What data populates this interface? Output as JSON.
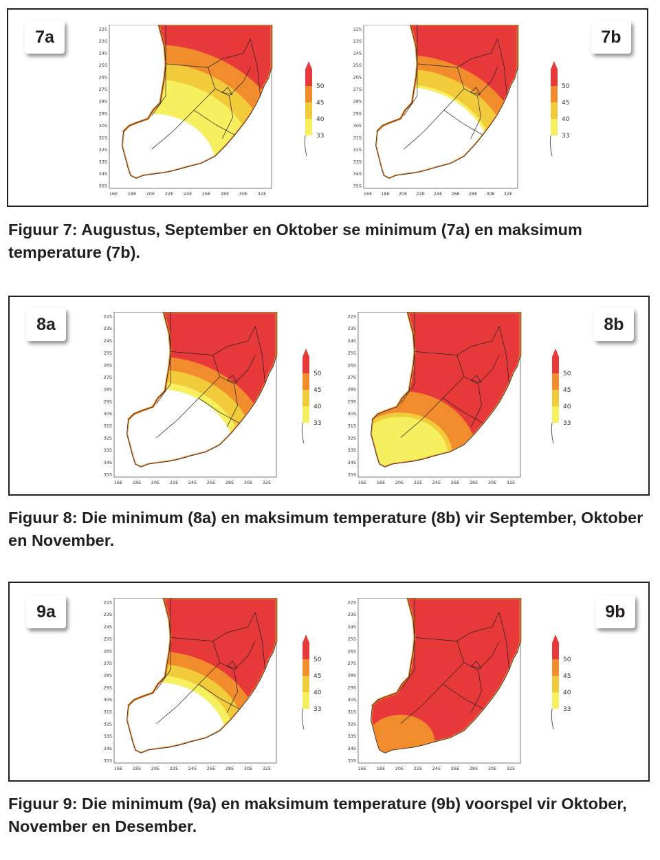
{
  "figures": [
    {
      "id": "7",
      "panels": [
        {
          "tag": "7a",
          "white_extent": 0.3,
          "inner_extent": 0.78,
          "outer_extent": 0.95
        },
        {
          "tag": "7b",
          "white_extent": 0.55,
          "inner_extent": 0.72,
          "outer_extent": 0.85
        }
      ],
      "caption": "Figuur 7: Augustus, September en Oktober se minimum (7a) en maksimum temperature (7b)."
    },
    {
      "id": "8",
      "panels": [
        {
          "tag": "8a",
          "white_extent": 0.42,
          "inner_extent": 0.6,
          "outer_extent": 0.72
        },
        {
          "tag": "8b",
          "white_extent": 0.0,
          "inner_extent": 0.2,
          "outer_extent": 0.4
        }
      ],
      "caption": "Figuur 8: Die minimum (8a) en maksimum temperature (8b) vir September, Oktober en November."
    },
    {
      "id": "9",
      "panels": [
        {
          "tag": "9a",
          "white_extent": 0.35,
          "inner_extent": 0.52,
          "outer_extent": 0.64
        },
        {
          "tag": "9b",
          "white_extent": 0.0,
          "inner_extent": 0.0,
          "outer_extent": 0.05
        }
      ],
      "caption": "Figuur 9: Die minimum (9a) en maksimum temperature (9b) voorspel vir Oktober, November en Desember."
    }
  ],
  "map_axes": {
    "lat_ticks": [
      "22S",
      "23S",
      "24S",
      "25S",
      "26S",
      "27S",
      "28S",
      "29S",
      "30S",
      "31S",
      "32S",
      "33S",
      "34S",
      "35S"
    ],
    "lon_ticks": [
      "16E",
      "18E",
      "20E",
      "22E",
      "24E",
      "26E",
      "28E",
      "30E",
      "32E"
    ]
  },
  "legend": {
    "values": [
      "50",
      "45",
      "40",
      "33"
    ],
    "colors": [
      "#e8393a",
      "#f08c2c",
      "#f2cb3a",
      "#f6f060"
    ]
  },
  "palette": {
    "hot": "#e8393a",
    "warm": "#f08c2c",
    "mild": "#f2cb3a",
    "cool": "#f6f060",
    "none": "#ffffff",
    "border": "#231f20"
  }
}
